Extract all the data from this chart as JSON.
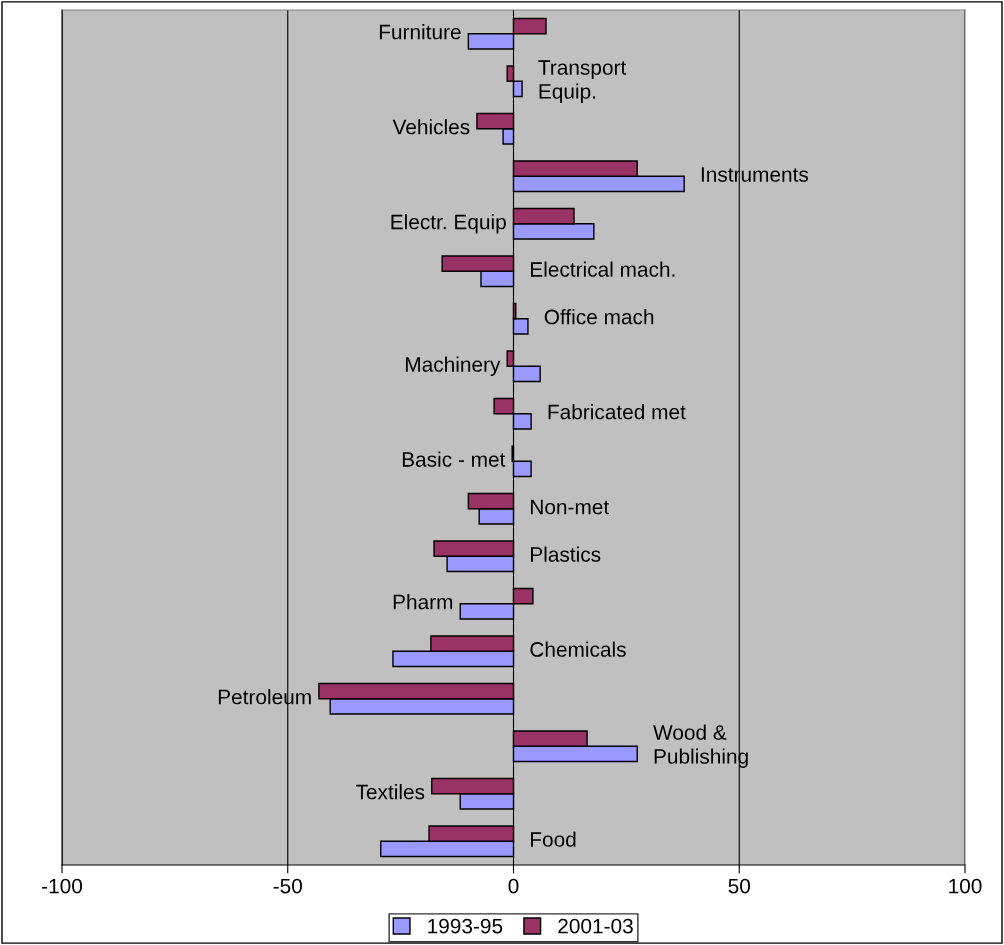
{
  "chart_data": {
    "type": "bar",
    "orientation": "horizontal",
    "categories": [
      "Furniture",
      "Transport\nEquip.",
      "Vehicles",
      "Instruments",
      "Electr. Equip",
      "Electrical mach.",
      "Office mach",
      "Machinery",
      "Fabricated met",
      "Basic - met",
      "Non-met",
      "Plastics",
      "Pharm",
      "Chemicals",
      "Petroleum",
      "Wood &\nPublishing",
      "Textiles",
      "Food"
    ],
    "series": [
      {
        "name": "1993-95",
        "color": "#9999ff",
        "values": [
          -10,
          1.9,
          -2.3,
          37.8,
          17.8,
          -7.2,
          3.2,
          5.9,
          3.9,
          3.9,
          -7.6,
          -14.7,
          -11.8,
          -26.7,
          -40.6,
          27.4,
          -11.8,
          -29.4
        ]
      },
      {
        "name": "2001-03",
        "color": "#993366",
        "values": [
          7.2,
          -1.4,
          -8.1,
          27.4,
          13.4,
          -15.8,
          0.5,
          -1.4,
          -4.3,
          -0.3,
          -10,
          -17.6,
          4.3,
          -18.3,
          -43.1,
          16.3,
          -18.1,
          -18.7
        ]
      }
    ],
    "xlim": [
      -100,
      100
    ],
    "xticks": [
      -100,
      -50,
      0,
      50,
      100
    ],
    "grid": "x",
    "legend": "bottom"
  }
}
